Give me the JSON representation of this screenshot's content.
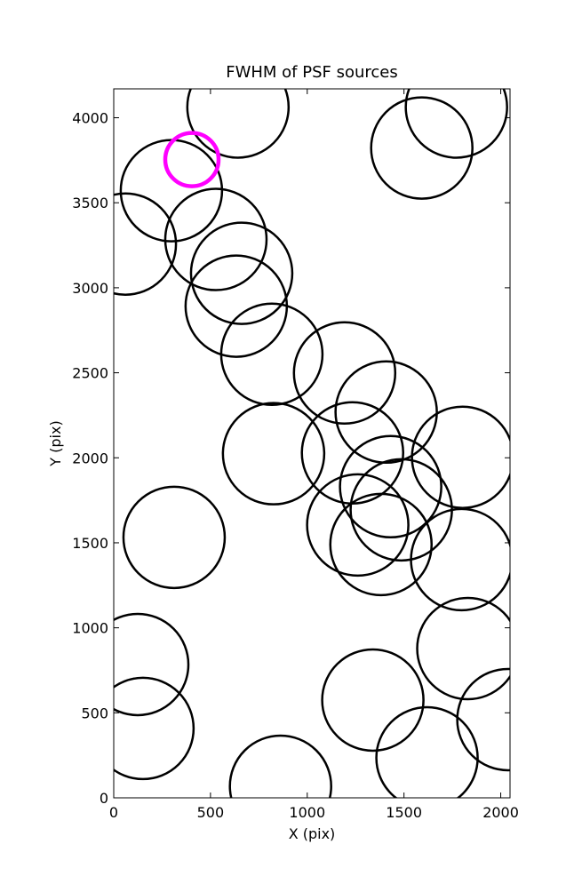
{
  "chart_data": {
    "type": "scatter",
    "title": "FWHM of PSF sources",
    "x_label": "X (pix)",
    "y_label": "Y (pix)",
    "xlim": [
      0,
      2048
    ],
    "ylim": [
      0,
      4170
    ],
    "xticks": [
      0,
      500,
      1000,
      1500,
      2000
    ],
    "yticks": [
      0,
      500,
      1000,
      1500,
      2000,
      2500,
      3000,
      3500,
      4000
    ],
    "series": [
      {
        "color": "#000000",
        "x": [
          642,
          1771,
          1592,
          298,
          60,
          528,
          661,
          633,
          817,
          1193,
          1408,
          826,
          1234,
          1803,
          1431,
          1486,
          1261,
          1381,
          1798,
          312,
          1830,
          124,
          1339,
          151,
          2037,
          1619,
          862
        ],
        "y": [
          4063,
          4063,
          3822,
          3571,
          3257,
          3284,
          3085,
          2892,
          2609,
          2499,
          2269,
          2024,
          2029,
          2003,
          1830,
          1694,
          1605,
          1490,
          1401,
          1532,
          878,
          784,
          575,
          408,
          460,
          235,
          68
        ]
      },
      {
        "color": "#ff00ff",
        "x": [
          404
        ],
        "y": [
          3754
        ]
      }
    ]
  }
}
